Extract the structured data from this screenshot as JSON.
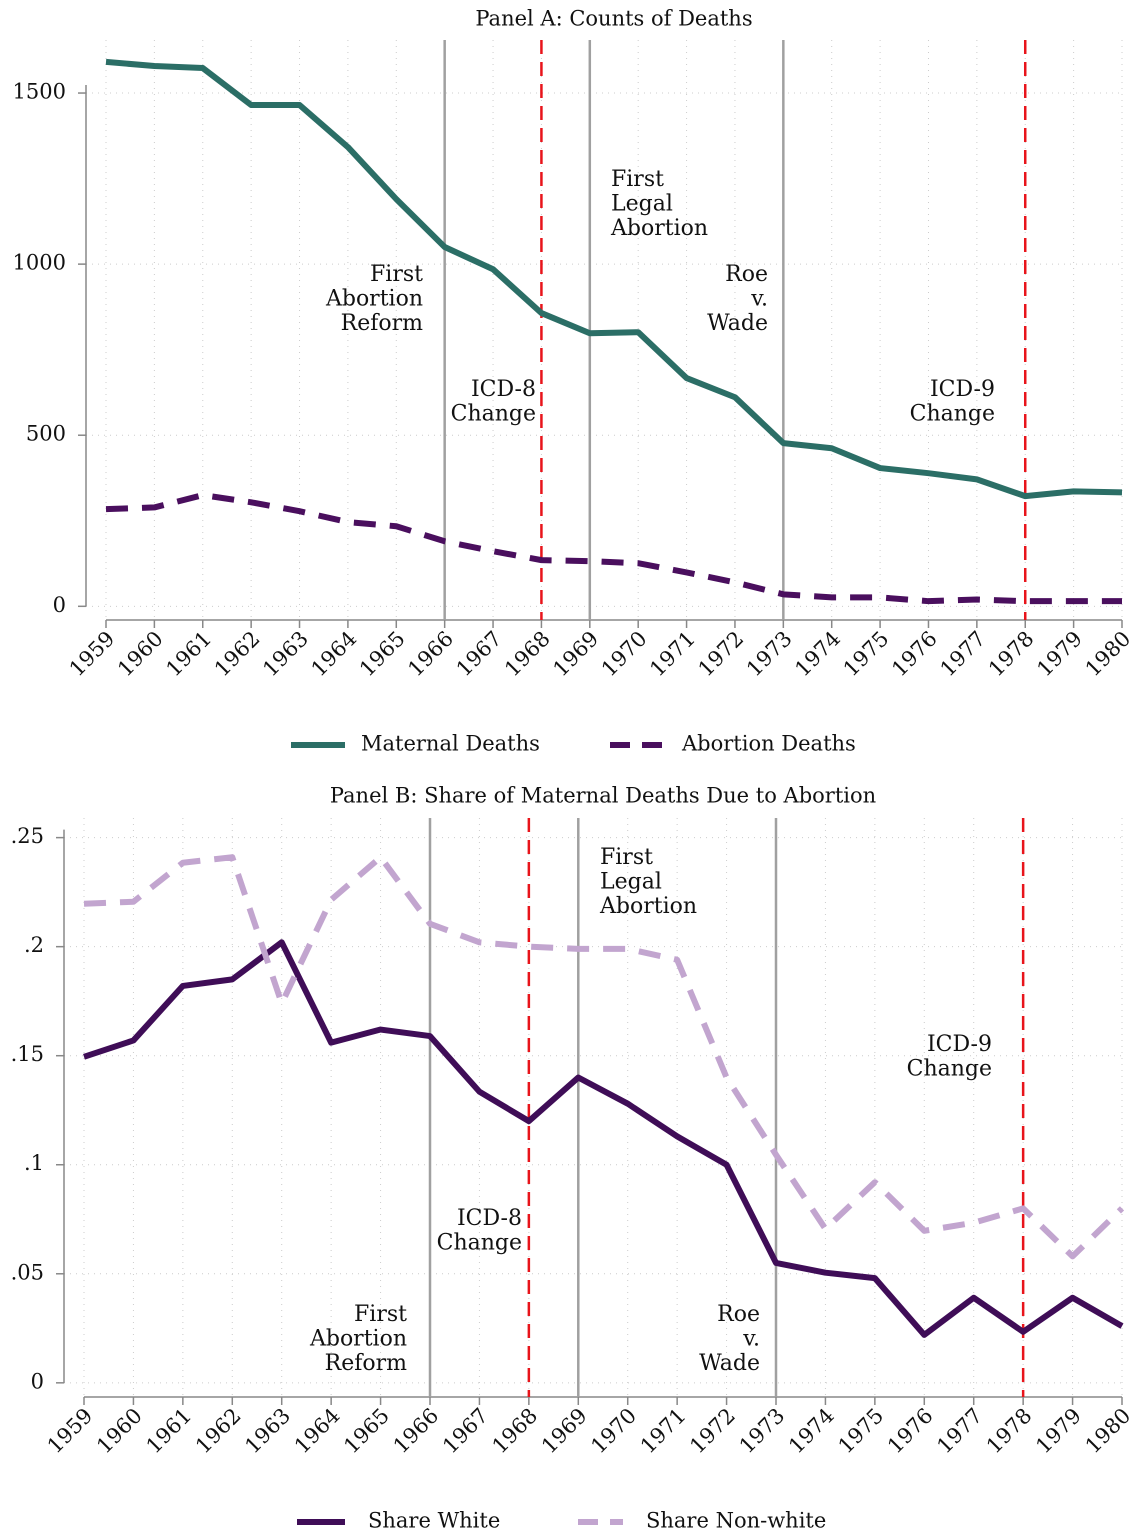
{
  "chart_data": [
    {
      "type": "line",
      "title": "Panel A: Counts of Deaths",
      "x": [
        1959,
        1960,
        1961,
        1962,
        1963,
        1964,
        1965,
        1966,
        1967,
        1968,
        1969,
        1970,
        1971,
        1972,
        1973,
        1974,
        1975,
        1976,
        1977,
        1978,
        1979,
        1980
      ],
      "xlim": [
        1959,
        1980
      ],
      "xticks": [
        1959,
        1960,
        1961,
        1962,
        1963,
        1964,
        1965,
        1966,
        1967,
        1968,
        1969,
        1970,
        1971,
        1972,
        1973,
        1974,
        1975,
        1976,
        1977,
        1978,
        1979,
        1980
      ],
      "ylim": [
        -40,
        1655
      ],
      "yticks": [
        0,
        500,
        1000,
        1500
      ],
      "grid": true,
      "series": [
        {
          "name": "Maternal Deaths",
          "color": "#2b6e66",
          "dash": false,
          "values": [
            1591,
            1579,
            1573,
            1465,
            1465,
            1342,
            1190,
            1050,
            985,
            857,
            798,
            801,
            667,
            611,
            477,
            462,
            404,
            389,
            371,
            322,
            336,
            333
          ]
        },
        {
          "name": "Abortion Deaths",
          "color": "#4a0f5e",
          "dash": true,
          "values": [
            284,
            289,
            325,
            304,
            278,
            246,
            234,
            190,
            161,
            135,
            132,
            126,
            99,
            70,
            35,
            26,
            26,
            15,
            20,
            15,
            15,
            15
          ]
        }
      ],
      "vlines": [
        {
          "x": 1966,
          "color": "#a0a0a0",
          "dash": false
        },
        {
          "x": 1968,
          "color": "#e8141b",
          "dash": true
        },
        {
          "x": 1969,
          "color": "#a0a0a0",
          "dash": false
        },
        {
          "x": 1973,
          "color": "#a0a0a0",
          "dash": false
        },
        {
          "x": 1978,
          "color": "#e8141b",
          "dash": true
        }
      ],
      "annotations": [
        {
          "lines": [
            "First",
            "Abortion",
            "Reform"
          ],
          "anchor": "end"
        },
        {
          "lines": [
            "ICD-8",
            "Change"
          ],
          "anchor": "end"
        },
        {
          "lines": [
            "First",
            "Legal",
            "Abortion"
          ],
          "anchor": "start"
        },
        {
          "lines": [
            "Roe",
            "v.",
            "Wade"
          ],
          "anchor": "end"
        },
        {
          "lines": [
            "ICD-9",
            "Change"
          ],
          "anchor": "end"
        }
      ]
    },
    {
      "type": "line",
      "title": "Panel B: Share of Maternal Deaths Due to Abortion",
      "x": [
        1959,
        1960,
        1961,
        1962,
        1963,
        1964,
        1965,
        1966,
        1967,
        1968,
        1969,
        1970,
        1971,
        1972,
        1973,
        1974,
        1975,
        1976,
        1977,
        1978,
        1979,
        1980
      ],
      "xlim": [
        1959,
        1980
      ],
      "xticks": [
        1959,
        1960,
        1961,
        1962,
        1963,
        1964,
        1965,
        1966,
        1967,
        1968,
        1969,
        1970,
        1971,
        1972,
        1973,
        1974,
        1975,
        1976,
        1977,
        1978,
        1979,
        1980
      ],
      "ylim": [
        -0.0065,
        0.259
      ],
      "yticks": [
        0,
        {
          "value": 0.05,
          "label": ".05"
        },
        {
          "value": 0.1,
          "label": ".1"
        },
        {
          "value": 0.15,
          "label": ".15"
        },
        {
          "value": 0.2,
          "label": ".2"
        },
        {
          "value": 0.25,
          "label": ".25"
        }
      ],
      "grid": true,
      "series": [
        {
          "name": "Share White",
          "color": "#3f0d57",
          "dash": false,
          "values": [
            0.1495,
            0.157,
            0.182,
            0.185,
            0.202,
            0.156,
            0.162,
            0.159,
            0.1335,
            0.12,
            0.14,
            0.128,
            0.113,
            0.1,
            0.055,
            0.0505,
            0.048,
            0.022,
            0.039,
            0.0234,
            0.039,
            0.026
          ]
        },
        {
          "name": "Share Non-white",
          "color": "#c2a5cf",
          "dash": true,
          "values": [
            0.2197,
            0.2206,
            0.2385,
            0.241,
            0.174,
            0.2215,
            0.241,
            0.2105,
            0.202,
            0.2,
            0.199,
            0.199,
            0.194,
            0.14,
            0.1046,
            0.0706,
            0.092,
            0.0697,
            0.0734,
            0.08,
            0.058,
            0.08
          ]
        }
      ],
      "vlines": [
        {
          "x": 1966,
          "color": "#a0a0a0",
          "dash": false
        },
        {
          "x": 1968,
          "color": "#e8141b",
          "dash": true
        },
        {
          "x": 1969,
          "color": "#a0a0a0",
          "dash": false
        },
        {
          "x": 1973,
          "color": "#a0a0a0",
          "dash": false
        },
        {
          "x": 1978,
          "color": "#e8141b",
          "dash": true
        }
      ],
      "annotations": [
        {
          "lines": [
            "First",
            "Abortion",
            "Reform"
          ],
          "anchor": "end"
        },
        {
          "lines": [
            "ICD-8",
            "Change"
          ],
          "anchor": "end"
        },
        {
          "lines": [
            "First",
            "Legal",
            "Abortion"
          ],
          "anchor": "start"
        },
        {
          "lines": [
            "Roe",
            "v.",
            "Wade"
          ],
          "anchor": "end"
        },
        {
          "lines": [
            "ICD-9",
            "Change"
          ],
          "anchor": "end"
        }
      ]
    }
  ]
}
